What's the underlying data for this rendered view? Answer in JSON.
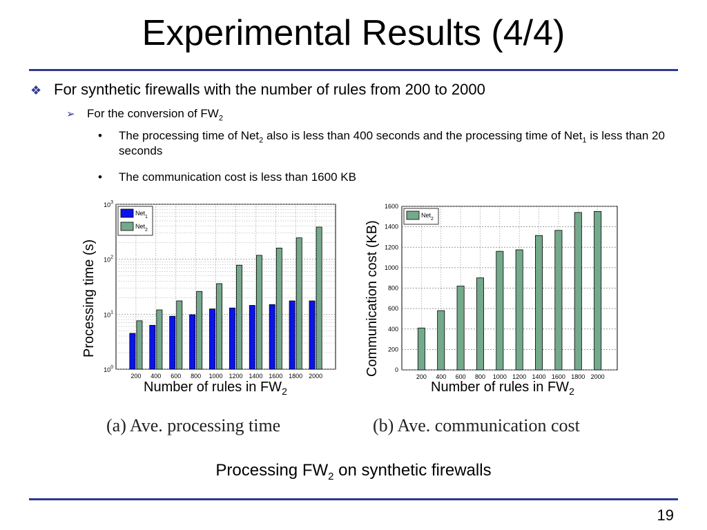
{
  "slide": {
    "title": "Experimental Results  (4/4)",
    "bullet1": "For synthetic firewalls with the number of rules from 200 to 2000",
    "bullet2_pre": "For the conversion of FW",
    "bullet2_sub": "2",
    "bullet3_1_a": "The processing time of Net",
    "bullet3_1_sub1": "2",
    "bullet3_1_b": " also is less than 400 seconds and the processing time of Net",
    "bullet3_1_sub2": "1",
    "bullet3_1_c": " is less than 20 seconds",
    "bullet3_2": "The communication cost is less than 1600 KB",
    "caption_a": "(a)  Ave. processing time",
    "caption_b": "(b)  Ave. communication cost",
    "figure_caption_pre": "Processing FW",
    "figure_caption_sub": "2",
    "figure_caption_post": " on synthetic firewalls",
    "page_number": "19",
    "accent_color": "#2f3791"
  },
  "chart_data": [
    {
      "type": "bar",
      "yscale": "log",
      "ylim": [
        1,
        1000
      ],
      "y_ticks": [
        {
          "base": "10",
          "exp": "0"
        },
        {
          "base": "10",
          "exp": "1"
        },
        {
          "base": "10",
          "exp": "2"
        },
        {
          "base": "10",
          "exp": "3"
        }
      ],
      "ylabel": "Processing time (s)",
      "xlabel_pre": "Number of rules in FW",
      "xlabel_sub": "2",
      "categories": [
        "200",
        "400",
        "600",
        "800",
        "1000",
        "1200",
        "1400",
        "1600",
        "1800",
        "2000"
      ],
      "grid": true,
      "legend_position": "top-left",
      "series": [
        {
          "name": "Net",
          "name_sub": "1",
          "color": "#0a14e6",
          "values": [
            4.5,
            6.3,
            9.2,
            9.8,
            12.5,
            13,
            14.5,
            15,
            17.5,
            17.5
          ]
        },
        {
          "name": "Net",
          "name_sub": "2",
          "color": "#74a98c",
          "values": [
            7.6,
            12,
            17.5,
            26,
            36,
            78,
            118,
            160,
            245,
            385
          ]
        }
      ]
    },
    {
      "type": "bar",
      "ylim": [
        0,
        1600
      ],
      "y_ticks": [
        "0",
        "200",
        "400",
        "600",
        "800",
        "1000",
        "1200",
        "1400",
        "1600"
      ],
      "ylabel": "Communication cost (KB)",
      "xlabel_pre": "Number of rules in FW",
      "xlabel_sub": "2",
      "categories": [
        "200",
        "400",
        "600",
        "800",
        "1000",
        "1200",
        "1400",
        "1600",
        "1800",
        "2000"
      ],
      "grid": true,
      "legend_position": "top-left",
      "series": [
        {
          "name": "Net",
          "name_sub": "2",
          "color": "#74a98c",
          "values": [
            410,
            580,
            820,
            900,
            1160,
            1175,
            1315,
            1365,
            1540,
            1550
          ]
        }
      ]
    }
  ]
}
